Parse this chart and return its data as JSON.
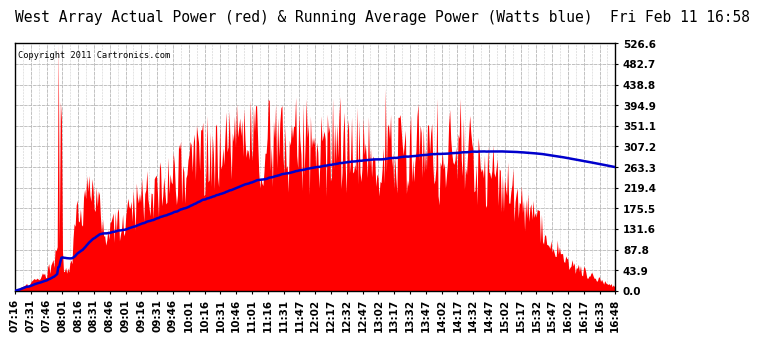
{
  "title": "West Array Actual Power (red) & Running Average Power (Watts blue)  Fri Feb 11 16:58",
  "copyright": "Copyright 2011 Cartronics.com",
  "y_ticks": [
    0.0,
    43.9,
    87.8,
    131.6,
    175.5,
    219.4,
    263.3,
    307.2,
    351.1,
    394.9,
    438.8,
    482.7,
    526.6
  ],
  "x_labels": [
    "07:16",
    "07:31",
    "07:46",
    "08:01",
    "08:16",
    "08:31",
    "08:46",
    "09:01",
    "09:16",
    "09:31",
    "09:46",
    "10:01",
    "10:16",
    "10:31",
    "10:46",
    "11:01",
    "11:16",
    "11:31",
    "11:47",
    "12:02",
    "12:17",
    "12:32",
    "12:47",
    "13:02",
    "13:17",
    "13:32",
    "13:47",
    "14:02",
    "14:17",
    "14:32",
    "14:47",
    "15:02",
    "15:17",
    "15:32",
    "15:47",
    "16:02",
    "16:17",
    "16:33",
    "16:48"
  ],
  "ymax": 526.6,
  "ymin": 0.0,
  "background_color": "#ffffff",
  "plot_bg_color": "#ffffff",
  "fill_color": "#ff0000",
  "line_color": "#0000cc",
  "grid_color": "#bbbbbb",
  "title_fontsize": 10.5,
  "tick_fontsize": 7.5
}
